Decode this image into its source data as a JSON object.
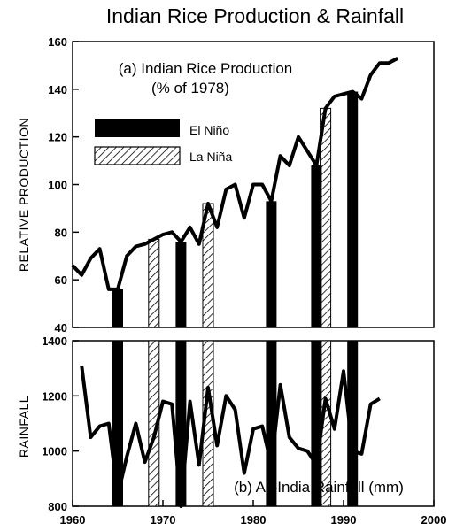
{
  "title": "Indian Rice Production & Rainfall",
  "chart_data": [
    {
      "type": "line",
      "title": "(a) Indian Rice Production",
      "subtitle": "(% of 1978)",
      "ylabel": "RELATIVE   PRODUCTION",
      "xlim": [
        1960,
        2000
      ],
      "ylim": [
        40,
        160
      ],
      "yticks": [
        "40",
        "60",
        "80",
        "100",
        "120",
        "140",
        "160"
      ],
      "series": [
        {
          "name": "Relative Production",
          "x": [
            1960,
            1961,
            1962,
            1963,
            1964,
            1965,
            1966,
            1967,
            1968,
            1969,
            1970,
            1971,
            1972,
            1973,
            1974,
            1975,
            1976,
            1977,
            1978,
            1979,
            1980,
            1981,
            1982,
            1983,
            1984,
            1985,
            1986,
            1987,
            1988,
            1989,
            1990,
            1991,
            1992,
            1993,
            1994,
            1995,
            1996
          ],
          "values": [
            66,
            62,
            69,
            73,
            56,
            56,
            70,
            74,
            75,
            77,
            79,
            80,
            76,
            82,
            75,
            92,
            82,
            98,
            100,
            86,
            100,
            100,
            93,
            112,
            108,
            120,
            114,
            108,
            132,
            137,
            138,
            139,
            136,
            146,
            151,
            151,
            153
          ]
        }
      ],
      "el_nino_bars": [
        {
          "year": 1965,
          "value": 56
        },
        {
          "year": 1972,
          "value": 76
        },
        {
          "year": 1982,
          "value": 93
        },
        {
          "year": 1987,
          "value": 108
        },
        {
          "year": 1991,
          "value": 139
        }
      ],
      "la_nina_bars": [
        {
          "year": 1969,
          "value": 77
        },
        {
          "year": 1975,
          "value": 92
        },
        {
          "year": 1988,
          "value": 132
        }
      ],
      "legend": {
        "position": "upper-left",
        "items": [
          {
            "label": "El Niño",
            "style": "solid"
          },
          {
            "label": "La Niña",
            "style": "hatched"
          }
        ]
      }
    },
    {
      "type": "line",
      "title": "(b) All-India Rainfall (mm)",
      "ylabel": "RAINFALL",
      "xlim": [
        1960,
        2000
      ],
      "ylim": [
        800,
        1400
      ],
      "xticks": [
        "1960",
        "1970",
        "1980",
        "1990",
        "2000"
      ],
      "yticks": [
        "800",
        "1000",
        "1200",
        "1400"
      ],
      "series": [
        {
          "name": "All-India Rainfall",
          "x": [
            1961,
            1962,
            1963,
            1964,
            1965,
            1966,
            1967,
            1968,
            1969,
            1970,
            1971,
            1972,
            1973,
            1974,
            1975,
            1976,
            1977,
            1978,
            1979,
            1980,
            1981,
            1982,
            1983,
            1984,
            1985,
            1986,
            1987,
            1988,
            1989,
            1990,
            1991,
            1992,
            1993,
            1994
          ],
          "values": [
            1310,
            1050,
            1090,
            1100,
            840,
            980,
            1100,
            960,
            1050,
            1180,
            1170,
            800,
            1180,
            950,
            1230,
            1020,
            1200,
            1150,
            920,
            1080,
            1090,
            950,
            1240,
            1050,
            1010,
            1000,
            950,
            1190,
            1080,
            1290,
            1000,
            990,
            1170,
            1190
          ]
        }
      ],
      "bar_years": {
        "el_nino": [
          1965,
          1972,
          1982,
          1987,
          1991
        ],
        "la_nina": [
          1969,
          1975,
          1988
        ]
      }
    }
  ],
  "colors": {
    "line": "#000000",
    "el_nino": "#000000",
    "la_nina_hatch": "#000000"
  }
}
